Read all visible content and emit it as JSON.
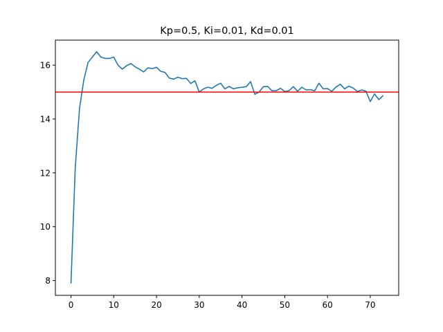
{
  "chart_data": {
    "type": "line",
    "title": "Kp=0.5, Ki=0.01, Kd=0.01",
    "xlabel": "",
    "ylabel": "",
    "xlim": [
      -3.65,
      76.65
    ],
    "ylim": [
      7.45,
      16.93
    ],
    "xticks": [
      0,
      10,
      20,
      30,
      40,
      50,
      60,
      70
    ],
    "yticks": [
      8,
      10,
      12,
      14,
      16
    ],
    "grid": false,
    "series": [
      {
        "color": "#1f77b4",
        "x": [
          0,
          1,
          2,
          3,
          4,
          5,
          6,
          7,
          8,
          9,
          10,
          11,
          12,
          13,
          14,
          15,
          16,
          17,
          18,
          19,
          20,
          21,
          22,
          23,
          24,
          25,
          26,
          27,
          28,
          29,
          30,
          31,
          32,
          33,
          34,
          35,
          36,
          37,
          38,
          39,
          40,
          41,
          42,
          43,
          44,
          45,
          46,
          47,
          48,
          49,
          50,
          51,
          52,
          53,
          54,
          55,
          56,
          57,
          58,
          59,
          60,
          61,
          62,
          63,
          64,
          65,
          66,
          67,
          68,
          69,
          70,
          71,
          72,
          73
        ],
        "values": [
          7.9,
          12.2,
          14.4,
          15.45,
          16.1,
          16.3,
          16.5,
          16.3,
          16.25,
          16.25,
          16.3,
          16.0,
          15.85,
          15.98,
          16.06,
          15.94,
          15.85,
          15.75,
          15.9,
          15.87,
          15.92,
          15.77,
          15.73,
          15.52,
          15.48,
          15.55,
          15.5,
          15.51,
          15.32,
          15.42,
          15.0,
          15.12,
          15.18,
          15.14,
          15.25,
          15.33,
          15.12,
          15.21,
          15.12,
          15.16,
          15.18,
          15.2,
          15.39,
          14.92,
          15.0,
          15.2,
          15.21,
          15.05,
          15.05,
          15.14,
          15.02,
          15.05,
          15.2,
          15.03,
          15.18,
          15.08,
          15.09,
          15.05,
          15.33,
          15.12,
          15.13,
          15.03,
          15.19,
          15.29,
          15.12,
          15.22,
          15.15,
          15.02,
          15.08,
          15.03,
          14.65,
          14.93,
          14.72,
          14.87
        ]
      }
    ],
    "reference_line": {
      "y": 15,
      "color": "#ff0000"
    }
  }
}
